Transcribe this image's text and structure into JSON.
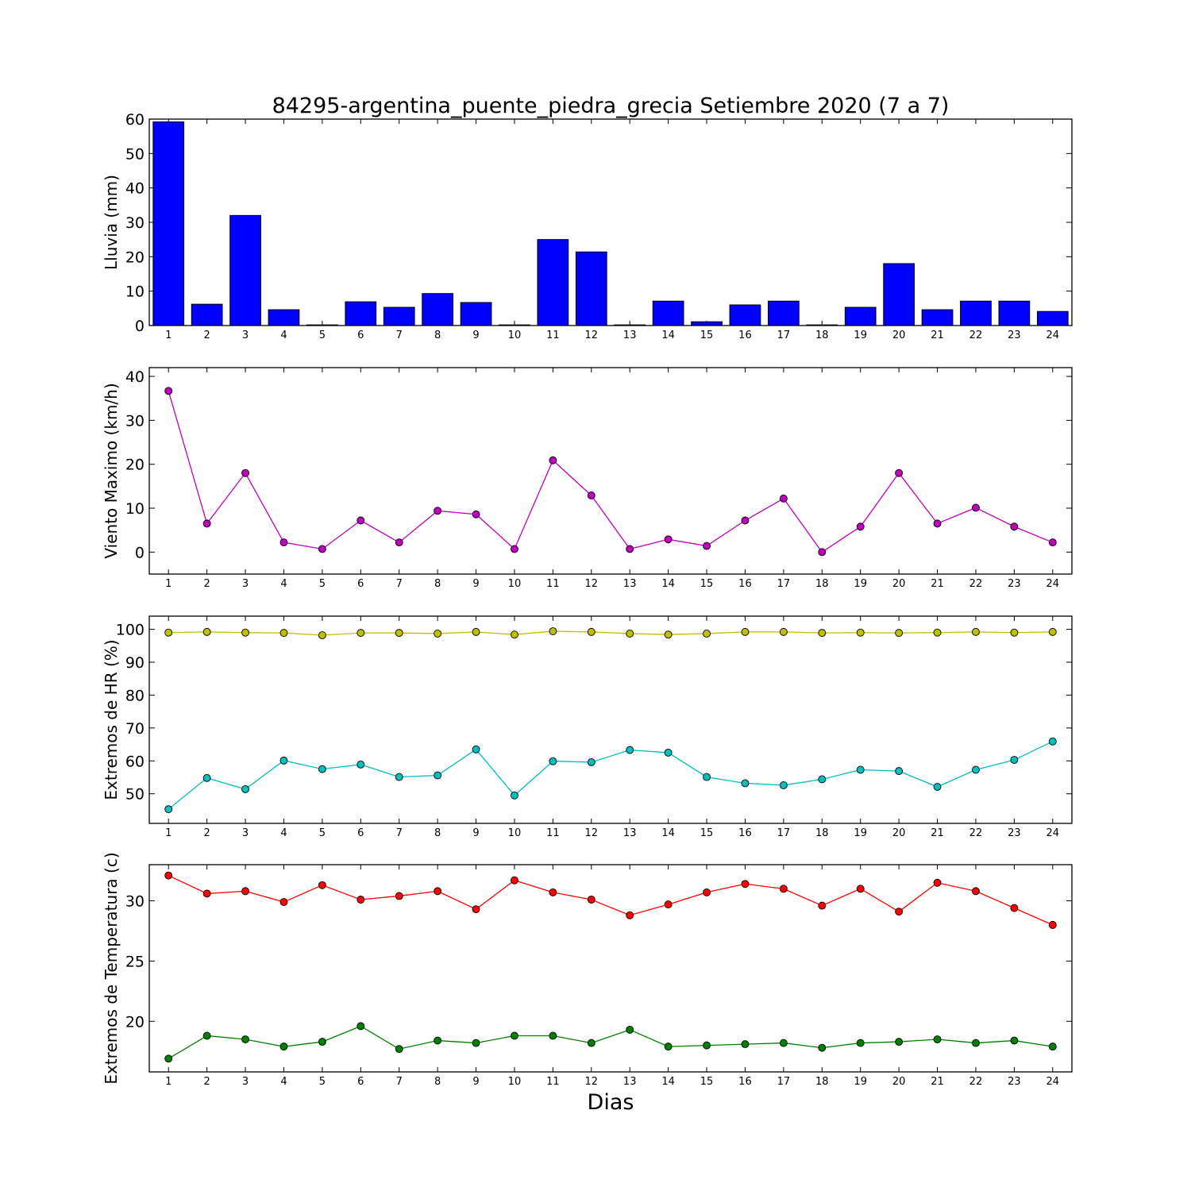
{
  "chart_data": [
    {
      "type": "bar",
      "title": "84295-argentina_puente_piedra_grecia Setiembre 2020  (7 a 7)",
      "ylabel": "Lluvia (mm)",
      "xlabel": "",
      "categories": [
        "1",
        "2",
        "3",
        "4",
        "5",
        "6",
        "7",
        "8",
        "9",
        "10",
        "11",
        "12",
        "13",
        "14",
        "15",
        "16",
        "17",
        "18",
        "19",
        "20",
        "21",
        "22",
        "23",
        "24"
      ],
      "values": [
        59.2,
        6.2,
        32.0,
        4.6,
        0.2,
        6.9,
        5.3,
        9.3,
        6.7,
        0.2,
        25.0,
        21.4,
        0.2,
        7.1,
        1.1,
        6.0,
        7.1,
        0.2,
        5.3,
        18.0,
        4.6,
        7.1,
        7.1,
        4.1
      ],
      "ylim": [
        0,
        60
      ],
      "yticks": [
        0,
        10,
        20,
        30,
        40,
        50,
        60
      ],
      "colors": {
        "bar": "#0000ff"
      }
    },
    {
      "type": "line",
      "ylabel": "Viento Maximo (km/h)",
      "xlabel": "",
      "x": [
        1,
        2,
        3,
        4,
        5,
        6,
        7,
        8,
        9,
        10,
        11,
        12,
        13,
        14,
        15,
        16,
        17,
        18,
        19,
        20,
        21,
        22,
        23,
        24
      ],
      "series": [
        {
          "values": [
            36.7,
            6.5,
            18.0,
            2.2,
            0.7,
            7.2,
            2.2,
            9.4,
            8.6,
            0.7,
            20.9,
            12.9,
            0.7,
            2.9,
            1.4,
            7.2,
            12.2,
            0.0,
            5.8,
            18.0,
            6.5,
            10.1,
            5.8,
            2.2
          ],
          "color": "#bf00bf"
        }
      ],
      "xlim": [
        0.5,
        24.5
      ],
      "ylim": [
        -5,
        42
      ],
      "yticks": [
        0,
        10,
        20,
        30,
        40
      ]
    },
    {
      "type": "line",
      "ylabel": "Extremos de HR (%)",
      "xlabel": "",
      "x": [
        1,
        2,
        3,
        4,
        5,
        6,
        7,
        8,
        9,
        10,
        11,
        12,
        13,
        14,
        15,
        16,
        17,
        18,
        19,
        20,
        21,
        22,
        23,
        24
      ],
      "series": [
        {
          "values": [
            99.0,
            99.2,
            99.0,
            98.9,
            98.2,
            98.9,
            98.9,
            98.7,
            99.2,
            98.4,
            99.4,
            99.2,
            98.7,
            98.4,
            98.7,
            99.2,
            99.2,
            98.9,
            99.0,
            98.9,
            99.0,
            99.2,
            99.0,
            99.2
          ],
          "color": "#bfbf00"
        },
        {
          "values": [
            45.3,
            54.8,
            51.4,
            60.1,
            57.5,
            58.9,
            55.1,
            55.6,
            63.5,
            49.5,
            59.9,
            59.6,
            63.3,
            62.5,
            55.1,
            53.2,
            52.6,
            54.4,
            57.3,
            56.9,
            52.1,
            57.3,
            60.3,
            65.9
          ],
          "color": "#00bfbf"
        }
      ],
      "xlim": [
        0.5,
        24.5
      ],
      "ylim": [
        41,
        104
      ],
      "yticks": [
        50,
        60,
        70,
        80,
        90,
        100
      ]
    },
    {
      "type": "line",
      "ylabel": "Extremos de Temperatura (c)",
      "xlabel": "Dias",
      "x": [
        1,
        2,
        3,
        4,
        5,
        6,
        7,
        8,
        9,
        10,
        11,
        12,
        13,
        14,
        15,
        16,
        17,
        18,
        19,
        20,
        21,
        22,
        23,
        24
      ],
      "series": [
        {
          "values": [
            32.1,
            30.6,
            30.8,
            29.9,
            31.3,
            30.1,
            30.4,
            30.8,
            29.3,
            31.7,
            30.7,
            30.1,
            28.8,
            29.7,
            30.7,
            31.4,
            31.0,
            29.6,
            31.0,
            29.1,
            31.5,
            30.8,
            29.4,
            28.0
          ],
          "color": "#ff0000"
        },
        {
          "values": [
            16.9,
            18.8,
            18.5,
            17.9,
            18.3,
            19.6,
            17.7,
            18.4,
            18.2,
            18.8,
            18.8,
            18.2,
            19.3,
            17.9,
            18.0,
            18.1,
            18.2,
            17.8,
            18.2,
            18.3,
            18.5,
            18.2,
            18.4,
            17.9
          ],
          "color": "#008000"
        }
      ],
      "xlim": [
        0.5,
        24.5
      ],
      "ylim": [
        15.8,
        33.0
      ],
      "yticks": [
        20,
        25,
        30
      ]
    }
  ]
}
